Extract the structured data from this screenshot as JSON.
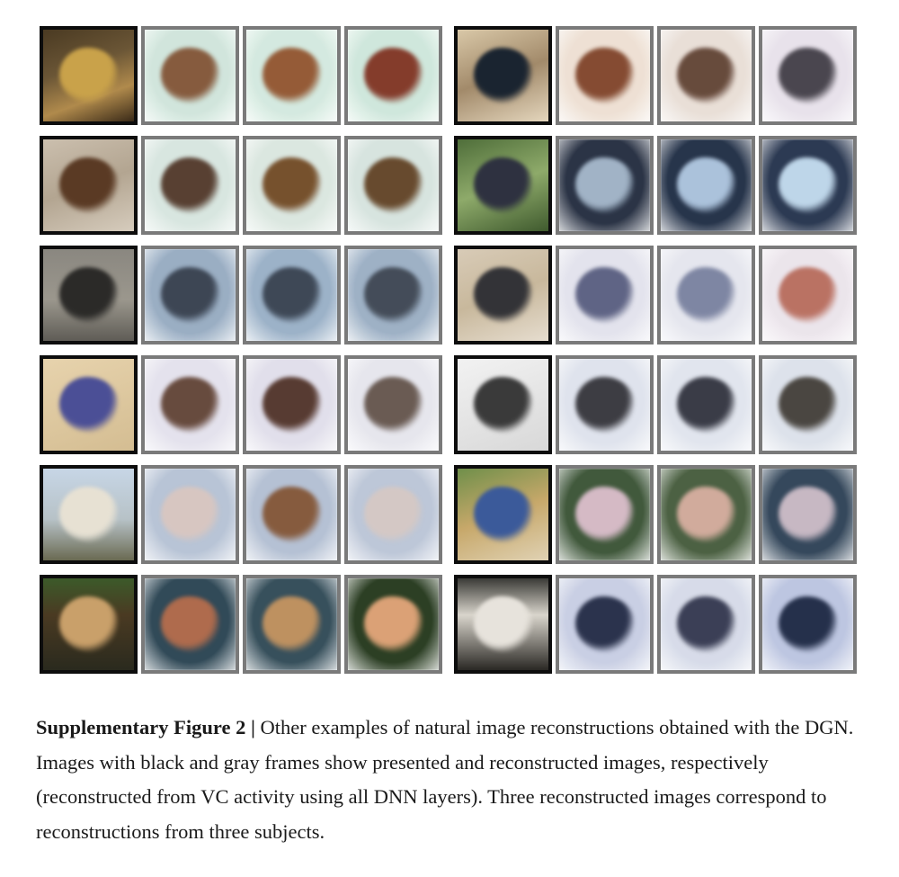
{
  "figure": {
    "rows": [
      {
        "left": {
          "presented": {
            "bg": "linear-gradient(160deg,#4a3a22 0%,#6b5636 40%,#b08a4c 70%,#3a2a18 100%)",
            "obj": "#c9a24a"
          },
          "recon": [
            {
              "bg": "#cfe6dc",
              "obj": "#8a5a3a"
            },
            {
              "bg": "#d2eadf",
              "obj": "#9a5a32"
            },
            {
              "bg": "#cde8db",
              "obj": "#8a3a28"
            }
          ]
        },
        "right": {
          "presented": {
            "bg": "linear-gradient(160deg,#d9c8a8 0%,#a28a6a 50%,#e4d6bd 100%)",
            "obj": "#1a2430"
          },
          "recon": [
            {
              "bg": "#efe0d2",
              "obj": "#8a4a2e"
            },
            {
              "bg": "#eadfd6",
              "obj": "#6a4a3a"
            },
            {
              "bg": "#e8e2ec",
              "obj": "#4a4650"
            }
          ]
        }
      },
      {
        "left": {
          "presented": {
            "bg": "linear-gradient(160deg,#cbbfae 0%,#b3a591 50%,#d6ccbd 100%)",
            "obj": "#5a3a24"
          },
          "recon": [
            {
              "bg": "#d7e6e0",
              "obj": "#5a4030"
            },
            {
              "bg": "#dae7e0",
              "obj": "#7a5028"
            },
            {
              "bg": "#d6e4df",
              "obj": "#6a4a2a"
            }
          ]
        },
        "right": {
          "presented": {
            "bg": "linear-gradient(160deg,#4f6e3a 0%,#8eaa6a 50%,#3f5a2e 100%)",
            "obj": "#2e3140"
          },
          "recon": [
            {
              "bg": "#2a3448",
              "obj": "#9fb3c8"
            },
            {
              "bg": "#26354e",
              "obj": "#a9c2de"
            },
            {
              "bg": "#2b3a56",
              "obj": "#bcd6ec"
            }
          ]
        }
      },
      {
        "left": {
          "presented": {
            "bg": "linear-gradient(180deg,#8a8780 0%,#9b978d 55%,#5f5c56 100%)",
            "obj": "#2b2a28"
          },
          "recon": [
            {
              "bg": "#98aec6",
              "obj": "#3c4656"
            },
            {
              "bg": "#9ab2cb",
              "obj": "#3d4858"
            },
            {
              "bg": "#9cb1c8",
              "obj": "#434c5a"
            }
          ]
        },
        "right": {
          "presented": {
            "bg": "linear-gradient(160deg,#d8cbb7 0%,#c8b89c 50%,#e6ddcf 100%)",
            "obj": "#333337"
          },
          "recon": [
            {
              "bg": "#e3e3ee",
              "obj": "#5e6488"
            },
            {
              "bg": "#e5e6ef",
              "obj": "#7d86a6"
            },
            {
              "bg": "#ece5ec",
              "obj": "#c07060"
            }
          ]
        }
      },
      {
        "left": {
          "presented": {
            "bg": "linear-gradient(160deg,#e7d3ad 0%,#d4bd92 100%)",
            "obj": "#4b4f96"
          },
          "recon": [
            {
              "bg": "#e4e2ee",
              "obj": "#6a4a3c"
            },
            {
              "bg": "#e1dfec",
              "obj": "#5a3a30"
            },
            {
              "bg": "#e6e6ee",
              "obj": "#6b5b52"
            }
          ]
        },
        "right": {
          "presented": {
            "bg": "linear-gradient(160deg,#f2f2f2 0%,#d8d8d8 100%)",
            "obj": "#3a3a3a"
          },
          "recon": [
            {
              "bg": "#dfe3ee",
              "obj": "#3d3d44"
            },
            {
              "bg": "#e1e5ef",
              "obj": "#3a3c48"
            },
            {
              "bg": "#dde2ec",
              "obj": "#4a4640"
            }
          ]
        }
      },
      {
        "left": {
          "presented": {
            "bg": "linear-gradient(180deg,#c7d6e6 0%,#b7c2c7 55%,#6a6a52 100%)",
            "obj": "#e7e1d3"
          },
          "recon": [
            {
              "bg": "#b7c4d8",
              "obj": "#d8c6c0"
            },
            {
              "bg": "#b4c1d6",
              "obj": "#8a5a3a"
            },
            {
              "bg": "#bcc7da",
              "obj": "#d5c8c4"
            }
          ]
        },
        "right": {
          "presented": {
            "bg": "linear-gradient(160deg,#6f8f4a 0%,#c7a86a 50%,#e0d2b4 100%)",
            "obj": "#3b5a9a"
          },
          "recon": [
            {
              "bg": "#3f5a3a",
              "obj": "#d7b9c6"
            },
            {
              "bg": "#4a6240",
              "obj": "#d4aa9a"
            },
            {
              "bg": "#33485e",
              "obj": "#c8b8c4"
            }
          ]
        }
      },
      {
        "left": {
          "presented": {
            "bg": "linear-gradient(180deg,#3c5a2a 0%,#4a3a22 40%,#2a2a1e 100%)",
            "obj": "#c9a06a"
          },
          "recon": [
            {
              "bg": "#2f4a5a",
              "obj": "#b56a48"
            },
            {
              "bg": "#35505e",
              "obj": "#c2905a"
            },
            {
              "bg": "#2b4022",
              "obj": "#e0a070"
            }
          ]
        },
        "right": {
          "presented": {
            "bg": "linear-gradient(180deg,#3a3a36 0%,#d9d5cc 40%,#2a2824 100%)",
            "obj": "#e7e3dc"
          },
          "recon": [
            {
              "bg": "#c8cfe6",
              "obj": "#2a3350"
            },
            {
              "bg": "#d6dbea",
              "obj": "#3a3f58"
            },
            {
              "bg": "#bcc6e4",
              "obj": "#24304e"
            }
          ]
        }
      }
    ]
  },
  "caption": {
    "label": "Supplementary Figure 2 |",
    "text": " Other examples of natural image reconstructions obtained with the DGN. Images with black and gray frames show presented and reconstructed images, respectively (reconstructed from VC activity using all DNN layers). Three reconstructed images correspond to reconstructions from three subjects."
  }
}
